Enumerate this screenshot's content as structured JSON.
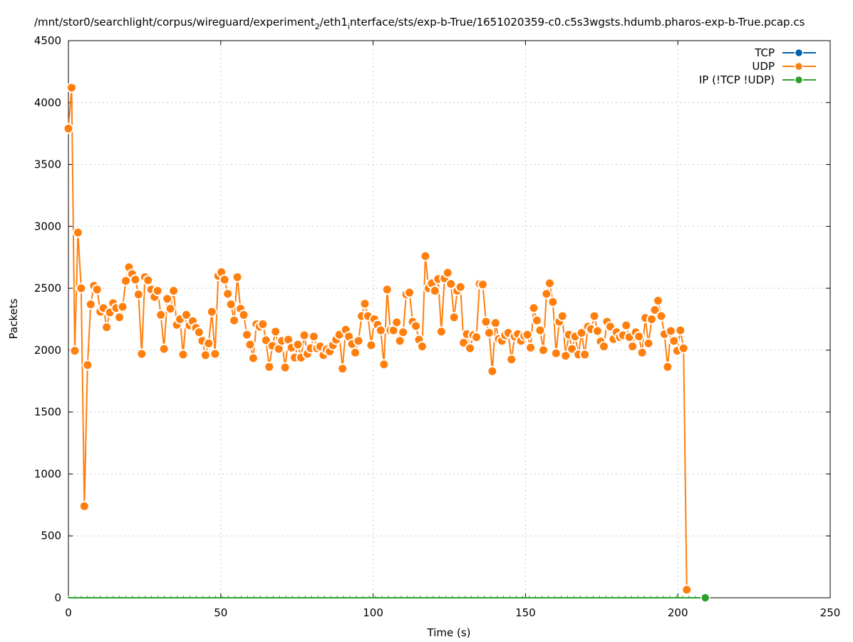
{
  "chart_data": {
    "type": "line",
    "title_parts": [
      {
        "text": "/mnt/stor0/searchlight/corpus/wireguard/experiment",
        "sub": false
      },
      {
        "text": "2",
        "sub": true
      },
      {
        "text": "/eth1",
        "sub": false
      },
      {
        "text": "i",
        "sub": true
      },
      {
        "text": "nterface/sts/exp-b-True/1651020359-c0.c5s3wgsts.hdumb.pharos-exp-b-True.pcap.cs",
        "sub": false
      }
    ],
    "xlabel": "Time (s)",
    "ylabel": "Packets",
    "xlim": [
      0,
      250
    ],
    "ylim": [
      0,
      4500
    ],
    "xticks": [
      0,
      50,
      100,
      150,
      200,
      250
    ],
    "yticks": [
      0,
      500,
      1000,
      1500,
      2000,
      2500,
      3000,
      3500,
      4000,
      4500
    ],
    "grid": true,
    "legend_position": "top-right",
    "series": [
      {
        "name": "TCP",
        "color": "#0060ad",
        "values": []
      },
      {
        "name": "UDP",
        "color": "#ff7f0e",
        "time_step": 1.046,
        "values": [
          3790,
          4120,
          1995,
          2950,
          2500,
          740,
          1880,
          2370,
          2520,
          2490,
          2310,
          2340,
          2185,
          2305,
          2380,
          2340,
          2265,
          2350,
          2560,
          2670,
          2615,
          2570,
          2450,
          1970,
          2590,
          2565,
          2490,
          2430,
          2480,
          2285,
          2010,
          2415,
          2335,
          2480,
          2205,
          2250,
          1965,
          2285,
          2200,
          2235,
          2180,
          2145,
          2075,
          1960,
          2055,
          2310,
          1970,
          2600,
          2630,
          2570,
          2455,
          2370,
          2240,
          2590,
          2335,
          2285,
          2125,
          2045,
          1935,
          2210,
          2190,
          2210,
          2080,
          1865,
          2035,
          2150,
          2010,
          2075,
          1860,
          2085,
          2020,
          1940,
          2045,
          1940,
          2120,
          1970,
          2015,
          2110,
          2015,
          2030,
          1960,
          2005,
          1990,
          2040,
          2085,
          2125,
          1850,
          2165,
          2110,
          2050,
          1980,
          2075,
          2275,
          2375,
          2275,
          2040,
          2250,
          2205,
          2160,
          1885,
          2490,
          2160,
          2160,
          2225,
          2075,
          2145,
          2450,
          2465,
          2230,
          2195,
          2085,
          2030,
          2760,
          2500,
          2540,
          2480,
          2575,
          2150,
          2580,
          2625,
          2535,
          2265,
          2480,
          2510,
          2060,
          2130,
          2015,
          2120,
          2105,
          2535,
          2530,
          2230,
          2140,
          1830,
          2220,
          2090,
          2075,
          2120,
          2140,
          1925,
          2110,
          2130,
          2075,
          2115,
          2125,
          2020,
          2340,
          2240,
          2160,
          2000,
          2455,
          2540,
          2390,
          1975,
          2230,
          2275,
          1955,
          2125,
          2010,
          2110,
          1965,
          2140,
          1965,
          2190,
          2170,
          2275,
          2155,
          2070,
          2030,
          2230,
          2190,
          2090,
          2145,
          2105,
          2120,
          2200,
          2105,
          2030,
          2145,
          2110,
          1980,
          2260,
          2055,
          2250,
          2325,
          2400,
          2275,
          2130,
          1865,
          2155,
          2075,
          1995,
          2160,
          2015,
          65
        ]
      },
      {
        "name": "IP (!TCP  !UDP)",
        "color": "#2ca02c",
        "end_time": 209,
        "values": [
          0
        ]
      }
    ]
  }
}
